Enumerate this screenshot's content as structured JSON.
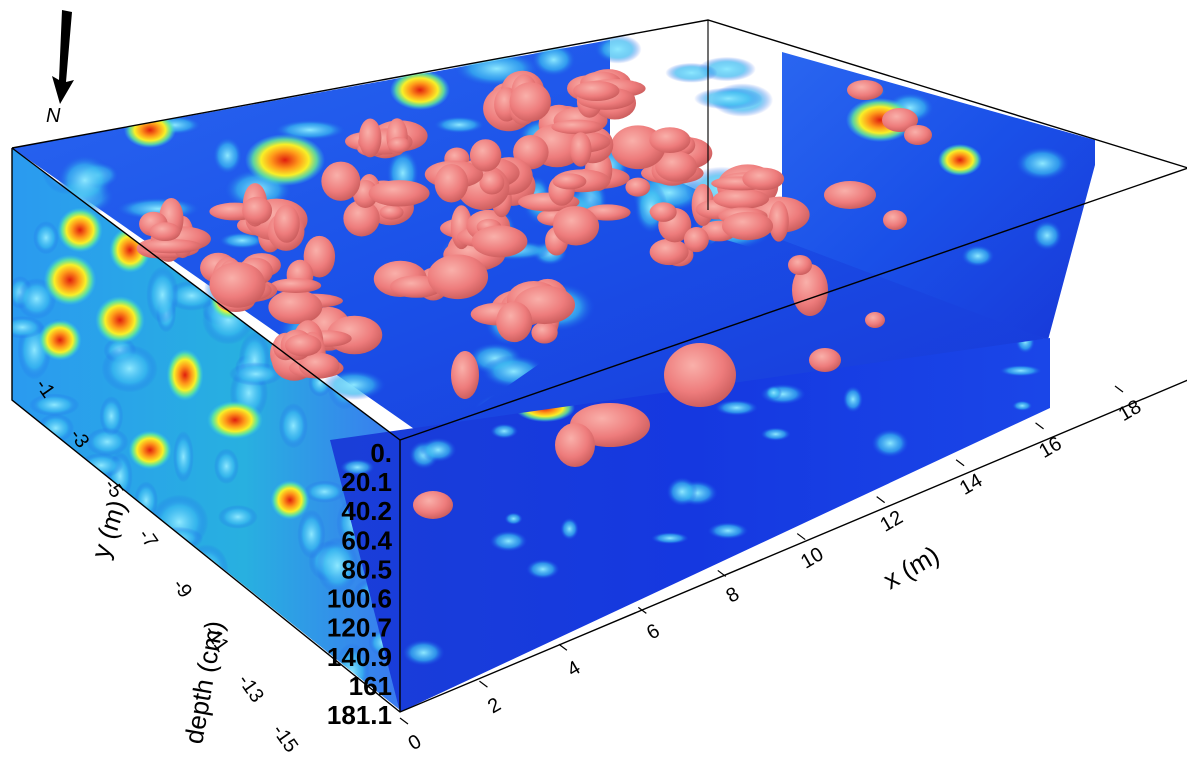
{
  "north_arrow": {
    "label": "N",
    "icon": "north-arrow-icon"
  },
  "chart_data": {
    "type": "heatmap",
    "subtype": "3d-volume-with-isosurfaces",
    "title": "",
    "x_axis": {
      "label": "x (m)",
      "ticks": [
        "0",
        "2",
        "4",
        "6",
        "8",
        "10",
        "12",
        "14",
        "16",
        "18"
      ],
      "range": [
        0,
        19
      ]
    },
    "y_axis": {
      "label": "y (m)",
      "ticks": [
        "-1",
        "-3",
        "-5",
        "-7",
        "-9",
        "-11",
        "-13",
        "-15"
      ],
      "range": [
        -15,
        0
      ]
    },
    "z_axis": {
      "label": "depth (cm)",
      "ticks": [
        "0.",
        "20.1",
        "40.2",
        "60.4",
        "80.5",
        "100.6",
        "120.7",
        "140.9",
        "161",
        "181.1"
      ],
      "range": [
        0,
        181.1
      ]
    },
    "colormap": [
      "#0a28d8",
      "#1060ff",
      "#38c8f0",
      "#6af090",
      "#f8f028",
      "#ff9a1a",
      "#e01e0e"
    ],
    "isosurface_color": "#ee7c7c",
    "grid": false,
    "legend": "none"
  }
}
